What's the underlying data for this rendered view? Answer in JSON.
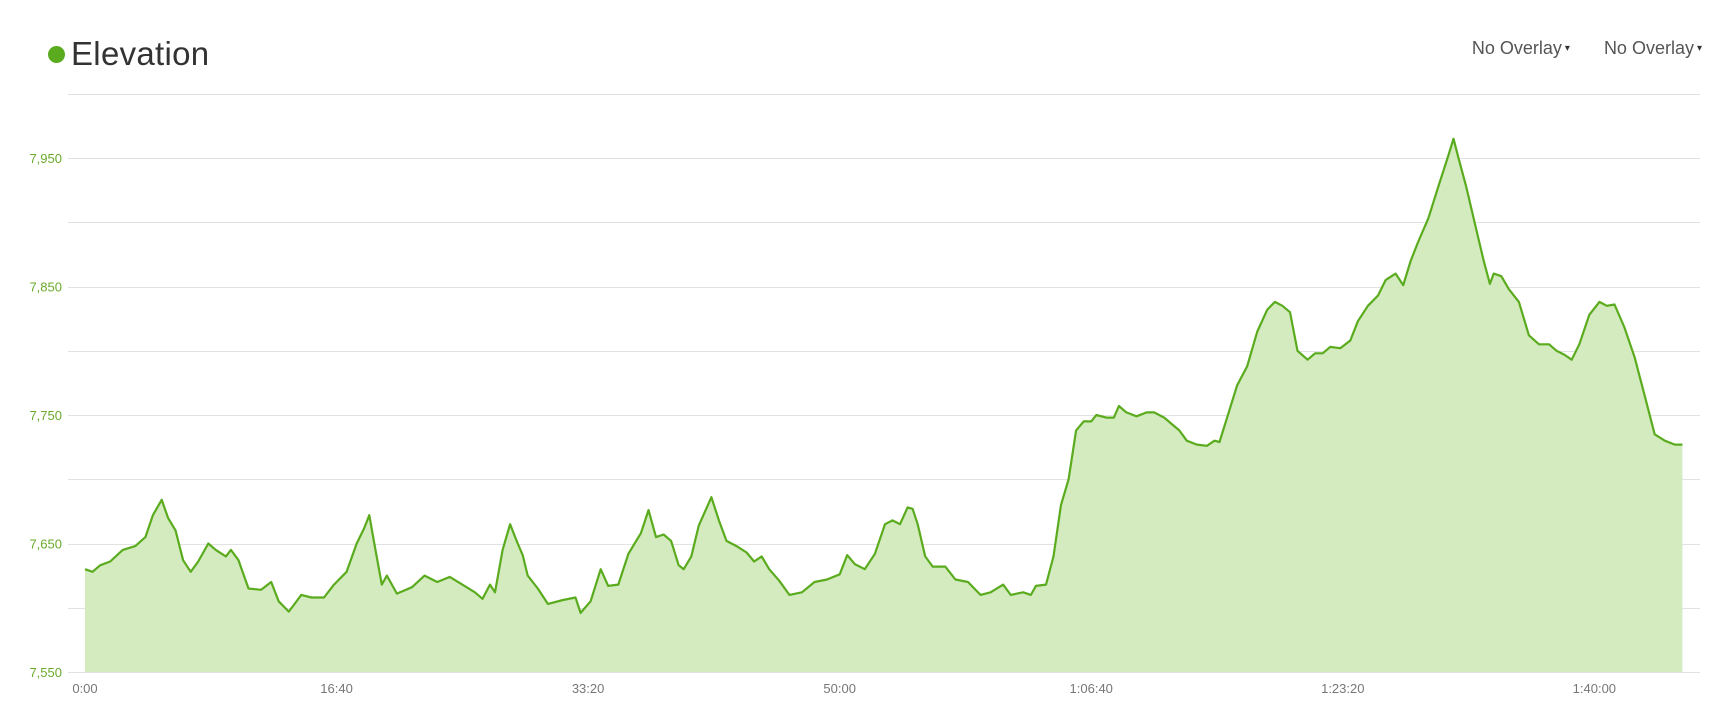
{
  "header": {
    "title": "Elevation",
    "overlay_1": "No Overlay",
    "overlay_2": "No Overlay",
    "caret_icon": "caret-down-icon"
  },
  "colors": {
    "series_line": "#5aab1e",
    "series_fill": "#d3ebbf",
    "legend_dot": "#5aab1e",
    "y_tick_label": "#6aaa2a",
    "x_tick_label": "#777777",
    "grid": "#e2e2e2"
  },
  "chart_data": {
    "type": "area",
    "title": "Elevation",
    "xlabel": "",
    "ylabel": "",
    "x_unit": "seconds",
    "xlim": [
      0,
      6420
    ],
    "ylim": [
      7550,
      7975
    ],
    "y_grid_values": [
      7550,
      7600,
      7650,
      7700,
      7750,
      7800,
      7850,
      7900,
      7950,
      8000
    ],
    "grid": true,
    "y_ticks": [
      {
        "value": 7550,
        "label": "7,550"
      },
      {
        "value": 7650,
        "label": "7,650"
      },
      {
        "value": 7750,
        "label": "7,750"
      },
      {
        "value": 7850,
        "label": "7,850"
      },
      {
        "value": 7950,
        "label": "7,950"
      }
    ],
    "x_ticks": [
      {
        "value": 0,
        "label": "0:00"
      },
      {
        "value": 1000,
        "label": "16:40"
      },
      {
        "value": 2000,
        "label": "33:20"
      },
      {
        "value": 3000,
        "label": "50:00"
      },
      {
        "value": 4000,
        "label": "1:06:40"
      },
      {
        "value": 5000,
        "label": "1:23:20"
      },
      {
        "value": 6000,
        "label": "1:40:00"
      }
    ],
    "series": [
      {
        "name": "Elevation",
        "points": [
          [
            0,
            7630
          ],
          [
            30,
            7628
          ],
          [
            60,
            7633
          ],
          [
            100,
            7636
          ],
          [
            150,
            7645
          ],
          [
            200,
            7648
          ],
          [
            240,
            7655
          ],
          [
            270,
            7672
          ],
          [
            305,
            7684
          ],
          [
            330,
            7670
          ],
          [
            360,
            7660
          ],
          [
            390,
            7637
          ],
          [
            420,
            7628
          ],
          [
            450,
            7636
          ],
          [
            490,
            7650
          ],
          [
            520,
            7645
          ],
          [
            560,
            7640
          ],
          [
            580,
            7645
          ],
          [
            610,
            7637
          ],
          [
            650,
            7615
          ],
          [
            700,
            7614
          ],
          [
            740,
            7620
          ],
          [
            770,
            7605
          ],
          [
            810,
            7597
          ],
          [
            860,
            7610
          ],
          [
            900,
            7608
          ],
          [
            950,
            7608
          ],
          [
            990,
            7618
          ],
          [
            1040,
            7628
          ],
          [
            1080,
            7650
          ],
          [
            1110,
            7662
          ],
          [
            1130,
            7672
          ],
          [
            1150,
            7650
          ],
          [
            1180,
            7618
          ],
          [
            1200,
            7625
          ],
          [
            1240,
            7611
          ],
          [
            1300,
            7616
          ],
          [
            1350,
            7625
          ],
          [
            1400,
            7620
          ],
          [
            1450,
            7624
          ],
          [
            1500,
            7618
          ],
          [
            1550,
            7612
          ],
          [
            1580,
            7607
          ],
          [
            1610,
            7618
          ],
          [
            1630,
            7612
          ],
          [
            1660,
            7645
          ],
          [
            1690,
            7665
          ],
          [
            1720,
            7650
          ],
          [
            1740,
            7641
          ],
          [
            1760,
            7625
          ],
          [
            1800,
            7615
          ],
          [
            1840,
            7603
          ],
          [
            1900,
            7606
          ],
          [
            1950,
            7608
          ],
          [
            1970,
            7596
          ],
          [
            2010,
            7605
          ],
          [
            2050,
            7630
          ],
          [
            2080,
            7617
          ],
          [
            2120,
            7618
          ],
          [
            2160,
            7642
          ],
          [
            2210,
            7658
          ],
          [
            2240,
            7676
          ],
          [
            2270,
            7655
          ],
          [
            2300,
            7657
          ],
          [
            2330,
            7652
          ],
          [
            2360,
            7633
          ],
          [
            2380,
            7630
          ],
          [
            2410,
            7640
          ],
          [
            2440,
            7664
          ],
          [
            2490,
            7686
          ],
          [
            2520,
            7668
          ],
          [
            2550,
            7652
          ],
          [
            2590,
            7648
          ],
          [
            2630,
            7643
          ],
          [
            2660,
            7636
          ],
          [
            2690,
            7640
          ],
          [
            2720,
            7630
          ],
          [
            2760,
            7621
          ],
          [
            2800,
            7610
          ],
          [
            2850,
            7612
          ],
          [
            2900,
            7620
          ],
          [
            2950,
            7622
          ],
          [
            3000,
            7626
          ],
          [
            3030,
            7641
          ],
          [
            3060,
            7634
          ],
          [
            3100,
            7630
          ],
          [
            3140,
            7642
          ],
          [
            3180,
            7665
          ],
          [
            3210,
            7668
          ],
          [
            3240,
            7665
          ],
          [
            3270,
            7678
          ],
          [
            3290,
            7677
          ],
          [
            3310,
            7665
          ],
          [
            3340,
            7640
          ],
          [
            3370,
            7632
          ],
          [
            3420,
            7632
          ],
          [
            3460,
            7622
          ],
          [
            3510,
            7620
          ],
          [
            3560,
            7610
          ],
          [
            3600,
            7612
          ],
          [
            3650,
            7618
          ],
          [
            3680,
            7610
          ],
          [
            3730,
            7612
          ],
          [
            3760,
            7610
          ],
          [
            3780,
            7617
          ],
          [
            3820,
            7618
          ],
          [
            3850,
            7640
          ],
          [
            3880,
            7680
          ],
          [
            3910,
            7700
          ],
          [
            3940,
            7738
          ],
          [
            3970,
            7745
          ],
          [
            4000,
            7745
          ],
          [
            4020,
            7750
          ],
          [
            4060,
            7748
          ],
          [
            4090,
            7748
          ],
          [
            4110,
            7757
          ],
          [
            4140,
            7752
          ],
          [
            4180,
            7749
          ],
          [
            4220,
            7752
          ],
          [
            4250,
            7752
          ],
          [
            4290,
            7748
          ],
          [
            4320,
            7743
          ],
          [
            4350,
            7738
          ],
          [
            4380,
            7730
          ],
          [
            4420,
            7727
          ],
          [
            4460,
            7726
          ],
          [
            4490,
            7730
          ],
          [
            4510,
            7729
          ],
          [
            4540,
            7748
          ],
          [
            4580,
            7773
          ],
          [
            4620,
            7788
          ],
          [
            4660,
            7815
          ],
          [
            4700,
            7832
          ],
          [
            4730,
            7838
          ],
          [
            4760,
            7835
          ],
          [
            4790,
            7830
          ],
          [
            4820,
            7800
          ],
          [
            4860,
            7793
          ],
          [
            4890,
            7798
          ],
          [
            4920,
            7798
          ],
          [
            4950,
            7803
          ],
          [
            4990,
            7802
          ],
          [
            5030,
            7808
          ],
          [
            5060,
            7823
          ],
          [
            5100,
            7835
          ],
          [
            5140,
            7843
          ],
          [
            5170,
            7855
          ],
          [
            5210,
            7860
          ],
          [
            5240,
            7851
          ],
          [
            5270,
            7870
          ],
          [
            5300,
            7885
          ],
          [
            5340,
            7903
          ],
          [
            5380,
            7928
          ],
          [
            5420,
            7952
          ],
          [
            5440,
            7965
          ],
          [
            5460,
            7950
          ],
          [
            5490,
            7928
          ],
          [
            5530,
            7895
          ],
          [
            5560,
            7870
          ],
          [
            5585,
            7852
          ],
          [
            5600,
            7860
          ],
          [
            5630,
            7858
          ],
          [
            5660,
            7848
          ],
          [
            5700,
            7838
          ],
          [
            5740,
            7812
          ],
          [
            5780,
            7805
          ],
          [
            5820,
            7805
          ],
          [
            5850,
            7800
          ],
          [
            5880,
            7797
          ],
          [
            5910,
            7793
          ],
          [
            5940,
            7805
          ],
          [
            5980,
            7828
          ],
          [
            6020,
            7838
          ],
          [
            6050,
            7835
          ],
          [
            6080,
            7836
          ],
          [
            6120,
            7818
          ],
          [
            6160,
            7795
          ],
          [
            6200,
            7765
          ],
          [
            6240,
            7735
          ],
          [
            6280,
            7730
          ],
          [
            6320,
            7727
          ],
          [
            6350,
            7727
          ]
        ]
      }
    ]
  }
}
